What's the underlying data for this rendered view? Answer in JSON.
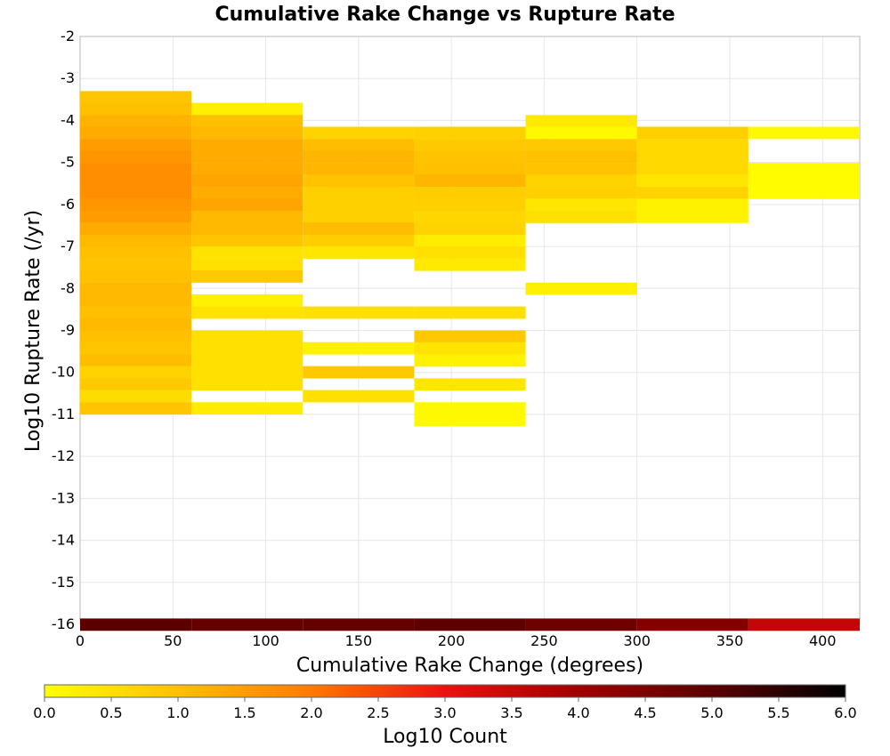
{
  "chart_data": {
    "type": "heatmap",
    "title": "Cumulative Rake Change vs Rupture Rate",
    "xlabel": "Cumulative Rake Change (degrees)",
    "ylabel": "Log10 Rupture Rate (/yr)",
    "xlim": [
      0,
      420
    ],
    "ylim": [
      -16,
      -2
    ],
    "x_ticks": [
      "0",
      "50",
      "100",
      "150",
      "200",
      "250",
      "300",
      "350",
      "400"
    ],
    "y_ticks": [
      "-2",
      "-3",
      "-4",
      "-5",
      "-6",
      "-7",
      "-8",
      "-9",
      "-10",
      "-11",
      "-12",
      "-13",
      "-14",
      "-15",
      "-16"
    ],
    "grid": true,
    "x_bin_width": 60,
    "y_bin_height": 0.285,
    "colorbar": {
      "label": "Log10 Count",
      "min": 0,
      "max": 6,
      "ticks": [
        "0.0",
        "0.5",
        "1.0",
        "1.5",
        "2.0",
        "2.5",
        "3.0",
        "3.5",
        "4.0",
        "4.5",
        "5.0",
        "5.5",
        "6.0"
      ],
      "stops": [
        "#ffff00",
        "#ffc000",
        "#ff7a00",
        "#ee1010",
        "#a00000",
        "#5a0000",
        "#000000"
      ]
    },
    "bins": [
      [
        0,
        -3.3,
        0.9
      ],
      [
        0,
        -3.58,
        1.0
      ],
      [
        0,
        -3.87,
        1.2
      ],
      [
        0,
        -4.15,
        1.3
      ],
      [
        0,
        -4.44,
        1.5
      ],
      [
        0,
        -4.72,
        1.6
      ],
      [
        0,
        -5.01,
        1.7
      ],
      [
        0,
        -5.29,
        1.7
      ],
      [
        0,
        -5.58,
        1.7
      ],
      [
        0,
        -5.86,
        1.6
      ],
      [
        0,
        -6.15,
        1.5
      ],
      [
        0,
        -6.43,
        1.3
      ],
      [
        0,
        -6.72,
        1.1
      ],
      [
        0,
        -7.0,
        1.0
      ],
      [
        0,
        -7.29,
        0.95
      ],
      [
        0,
        -7.57,
        1.0
      ],
      [
        0,
        -7.86,
        1.1
      ],
      [
        0,
        -8.14,
        1.1
      ],
      [
        0,
        -8.43,
        1.0
      ],
      [
        0,
        -8.71,
        1.1
      ],
      [
        0,
        -9.0,
        1.0
      ],
      [
        0,
        -9.28,
        0.9
      ],
      [
        0,
        -9.57,
        1.05
      ],
      [
        0,
        -9.85,
        0.7
      ],
      [
        0,
        -10.14,
        0.85
      ],
      [
        0,
        -10.42,
        0.55
      ],
      [
        0,
        -10.71,
        0.9
      ],
      [
        60,
        -3.58,
        0.25
      ],
      [
        60,
        -3.87,
        1.0
      ],
      [
        60,
        -4.15,
        1.1
      ],
      [
        60,
        -4.44,
        1.3
      ],
      [
        60,
        -4.72,
        1.3
      ],
      [
        60,
        -5.01,
        1.3
      ],
      [
        60,
        -5.29,
        1.4
      ],
      [
        60,
        -5.58,
        1.3
      ],
      [
        60,
        -5.86,
        1.4
      ],
      [
        60,
        -6.15,
        1.1
      ],
      [
        60,
        -6.43,
        1.1
      ],
      [
        60,
        -6.72,
        0.9
      ],
      [
        60,
        -7.0,
        0.45
      ],
      [
        60,
        -7.29,
        0.5
      ],
      [
        60,
        -7.57,
        0.85
      ],
      [
        60,
        -8.14,
        0.2
      ],
      [
        60,
        -8.43,
        0.45
      ],
      [
        60,
        -9.0,
        0.5
      ],
      [
        60,
        -9.28,
        0.5
      ],
      [
        60,
        -9.57,
        0.5
      ],
      [
        60,
        -9.85,
        0.5
      ],
      [
        60,
        -10.14,
        0.5
      ],
      [
        60,
        -10.71,
        0.3
      ],
      [
        120,
        -4.15,
        0.7
      ],
      [
        120,
        -4.44,
        1.05
      ],
      [
        120,
        -4.72,
        1.15
      ],
      [
        120,
        -5.01,
        1.15
      ],
      [
        120,
        -5.29,
        0.95
      ],
      [
        120,
        -5.58,
        0.75
      ],
      [
        120,
        -5.86,
        0.75
      ],
      [
        120,
        -6.15,
        0.75
      ],
      [
        120,
        -6.43,
        1.05
      ],
      [
        120,
        -6.72,
        0.8
      ],
      [
        120,
        -7.0,
        0.4
      ],
      [
        120,
        -8.43,
        0.5
      ],
      [
        120,
        -9.28,
        0.2
      ],
      [
        120,
        -9.85,
        0.85
      ],
      [
        120,
        -10.42,
        0.5
      ],
      [
        180,
        -4.15,
        0.75
      ],
      [
        180,
        -4.44,
        0.85
      ],
      [
        180,
        -4.72,
        0.95
      ],
      [
        180,
        -5.01,
        1.0
      ],
      [
        180,
        -5.29,
        1.15
      ],
      [
        180,
        -5.58,
        0.8
      ],
      [
        180,
        -5.86,
        0.75
      ],
      [
        180,
        -6.15,
        0.65
      ],
      [
        180,
        -6.43,
        0.7
      ],
      [
        180,
        -6.72,
        0.3
      ],
      [
        180,
        -7.0,
        0.5
      ],
      [
        180,
        -7.29,
        0.35
      ],
      [
        180,
        -8.43,
        0.5
      ],
      [
        180,
        -9.0,
        0.85
      ],
      [
        180,
        -9.28,
        0.45
      ],
      [
        180,
        -9.57,
        0.2
      ],
      [
        180,
        -10.14,
        0.4
      ],
      [
        180,
        -10.71,
        0.1
      ],
      [
        180,
        -10.99,
        0.1
      ],
      [
        240,
        -3.87,
        0.35
      ],
      [
        240,
        -4.15,
        0.1
      ],
      [
        240,
        -4.44,
        0.85
      ],
      [
        240,
        -4.72,
        1.0
      ],
      [
        240,
        -5.01,
        0.95
      ],
      [
        240,
        -5.29,
        0.7
      ],
      [
        240,
        -5.58,
        0.75
      ],
      [
        240,
        -5.86,
        0.4
      ],
      [
        240,
        -6.15,
        0.5
      ],
      [
        240,
        -7.86,
        0.25
      ],
      [
        300,
        -4.15,
        0.75
      ],
      [
        300,
        -4.44,
        0.6
      ],
      [
        300,
        -4.72,
        0.6
      ],
      [
        300,
        -5.01,
        0.6
      ],
      [
        300,
        -5.29,
        0.4
      ],
      [
        300,
        -5.58,
        0.7
      ],
      [
        300,
        -5.86,
        0.2
      ],
      [
        300,
        -6.15,
        0.2
      ],
      [
        360,
        -4.15,
        0.1
      ],
      [
        360,
        -5.01,
        0.05
      ],
      [
        360,
        -5.29,
        0.05
      ],
      [
        360,
        -5.58,
        0.05
      ],
      [
        0,
        -15.86,
        5.0
      ],
      [
        60,
        -15.86,
        4.85
      ],
      [
        120,
        -15.86,
        4.85
      ],
      [
        180,
        -15.86,
        4.95
      ],
      [
        240,
        -15.86,
        4.7
      ],
      [
        300,
        -15.86,
        4.4
      ],
      [
        360,
        -15.86,
        3.55
      ]
    ]
  }
}
